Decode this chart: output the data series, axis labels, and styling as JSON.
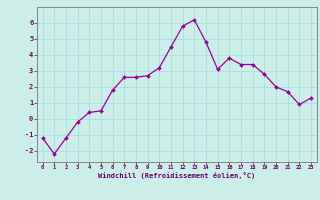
{
  "x": [
    0,
    1,
    2,
    3,
    4,
    5,
    6,
    7,
    8,
    9,
    10,
    11,
    12,
    13,
    14,
    15,
    16,
    17,
    18,
    19,
    20,
    21,
    22,
    23
  ],
  "y": [
    -1.2,
    -2.2,
    -1.2,
    -0.2,
    0.4,
    0.5,
    1.8,
    2.6,
    2.6,
    2.7,
    3.2,
    4.5,
    5.8,
    6.2,
    4.8,
    3.1,
    3.8,
    3.4,
    3.4,
    2.8,
    2.0,
    1.7,
    0.9,
    1.3
  ],
  "xlabel": "Windchill (Refroidissement éolien,°C)",
  "xlim": [
    -0.5,
    23.5
  ],
  "ylim": [
    -2.7,
    7.0
  ],
  "xticks": [
    0,
    1,
    2,
    3,
    4,
    5,
    6,
    7,
    8,
    9,
    10,
    11,
    12,
    13,
    14,
    15,
    16,
    17,
    18,
    19,
    20,
    21,
    22,
    23
  ],
  "yticks": [
    -2,
    -1,
    0,
    1,
    2,
    3,
    4,
    5,
    6
  ],
  "line_color": "#990099",
  "marker_color": "#990099",
  "bg_color": "#cceee8",
  "grid_color": "#aadddd",
  "axis_color": "#777777",
  "label_color": "#660066",
  "tick_color": "#660066",
  "font_family": "monospace"
}
